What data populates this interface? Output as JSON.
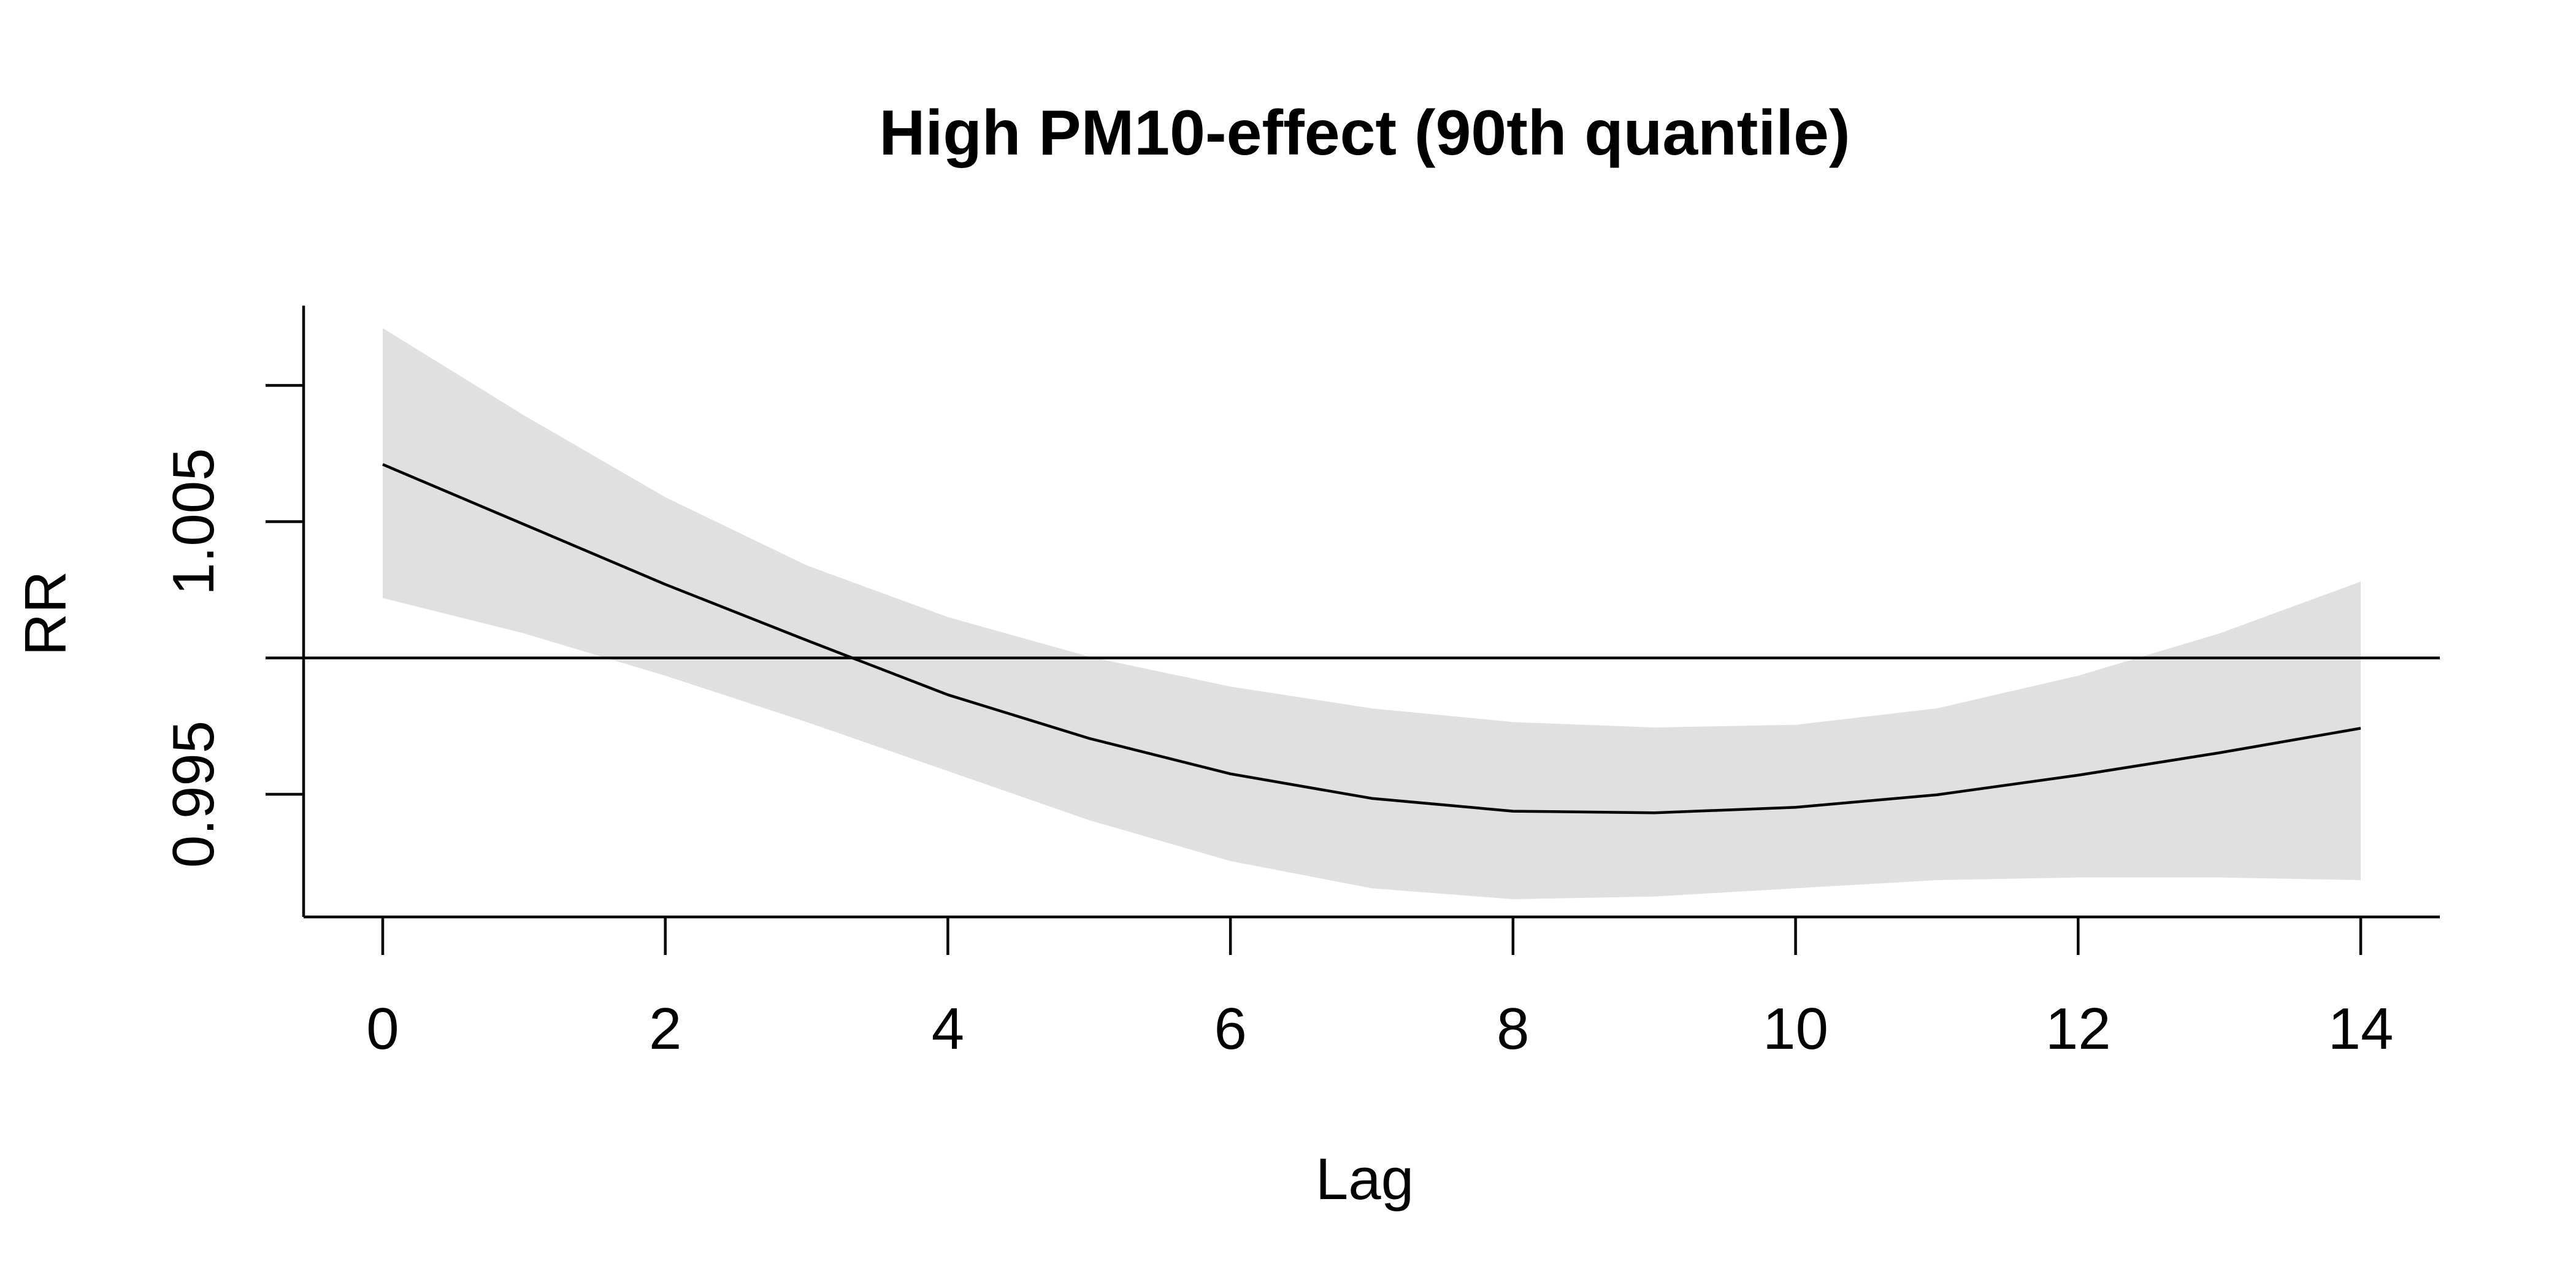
{
  "chart_data": {
    "type": "line",
    "title": "High PM10-effect (90th quantile)",
    "xlabel": "Lag",
    "ylabel": "RR",
    "x": [
      0,
      1,
      2,
      3,
      4,
      5,
      6,
      7,
      8,
      9,
      10,
      11,
      12,
      13,
      14
    ],
    "series": [
      {
        "estimate": [
          1.0071,
          1.0049,
          1.0027,
          1.00065,
          0.99865,
          0.99705,
          0.99575,
          0.99485,
          0.99438,
          0.99432,
          0.99452,
          0.99498,
          0.9957,
          0.99652,
          0.99742
        ],
        "lower": [
          1.0022,
          1.0009,
          0.99935,
          0.99765,
          0.99585,
          0.99405,
          0.99255,
          0.99155,
          0.99115,
          0.99125,
          0.99155,
          0.99185,
          0.99195,
          0.99195,
          0.99185
        ],
        "upper": [
          1.0121,
          1.0089,
          1.0059,
          1.0034,
          1.0015,
          1.00005,
          0.99895,
          0.99815,
          0.99765,
          0.99745,
          0.99755,
          0.99815,
          0.99935,
          1.0009,
          1.0028
        ]
      }
    ],
    "reference_line": 1.0,
    "xticks": [
      "0",
      "2",
      "4",
      "6",
      "8",
      "10",
      "12",
      "14"
    ],
    "yticks": [
      "0.995",
      "1.005"
    ],
    "xlim": [
      -0.56,
      14.56
    ],
    "ylim": [
      0.9905,
      1.013
    ],
    "grid": false,
    "legend": "none",
    "colors": {
      "line": "#000000",
      "band": "#e0e0e0",
      "axis": "#000000"
    }
  }
}
